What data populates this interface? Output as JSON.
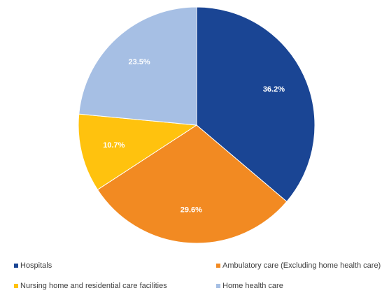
{
  "chart_data": {
    "type": "pie",
    "title": "",
    "categories": [
      "Hospitals",
      "Ambulatory care (Excluding home health care)",
      "Nursing home and residential care facilities",
      "Home health care"
    ],
    "values": [
      36.2,
      29.6,
      10.7,
      23.5
    ],
    "value_labels": [
      "36.2%",
      "29.6%",
      "10.7%",
      "23.5%"
    ],
    "colors": [
      "#1a4594",
      "#f28a22",
      "#ffc20e",
      "#a6bfe4"
    ],
    "start_angle": "12 o'clock",
    "direction": "clockwise",
    "legend_position": "bottom"
  },
  "legend": {
    "items": [
      {
        "label": "Hospitals",
        "color": "#1a4594"
      },
      {
        "label": "Ambulatory care (Excluding home health care)",
        "color": "#f28a22"
      },
      {
        "label": "Nursing home and residential care facilities",
        "color": "#ffc20e"
      },
      {
        "label": "Home health care",
        "color": "#a6bfe4"
      }
    ]
  }
}
